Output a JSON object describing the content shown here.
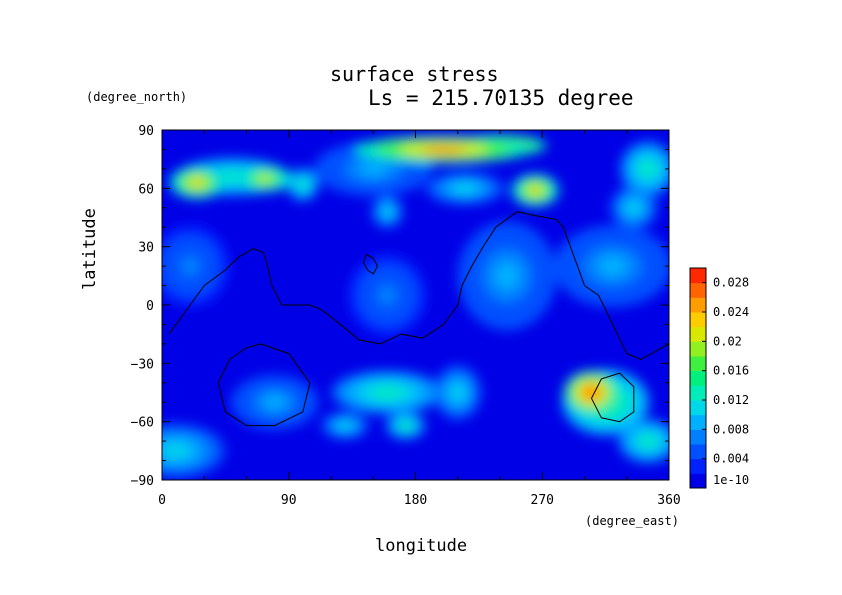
{
  "chart_data": {
    "type": "heatmap",
    "title": "surface stress",
    "subtitle": "Ls = 215.70135 degree",
    "xlabel": "longitude",
    "ylabel": "latitude",
    "x_units": "(degree_east)",
    "y_units": "(degree_north)",
    "xlim": [
      0,
      360
    ],
    "ylim": [
      -90,
      90
    ],
    "x_ticks": [
      "0",
      "90",
      "180",
      "270",
      "360"
    ],
    "y_ticks": [
      "90",
      "60",
      "30",
      "0",
      "−30",
      "−60",
      "−90"
    ],
    "colorbar": {
      "min": 0,
      "max": 0.03,
      "tick_labels": [
        "1e-10",
        "0.004",
        "0.008",
        "0.012",
        "0.016",
        "0.02",
        "0.024",
        "0.028"
      ],
      "colors": [
        "#0000e6",
        "#0022ff",
        "#0050ff",
        "#0080ff",
        "#00b0ff",
        "#00d8e8",
        "#00ecb8",
        "#00f080",
        "#40f040",
        "#90f020",
        "#d8e800",
        "#ffcc00",
        "#ff9c00",
        "#ff6400",
        "#ff2800"
      ]
    },
    "hotspots": [
      {
        "lon": 200,
        "lat": 80,
        "value": 0.026,
        "rx": 45,
        "ry": 5
      },
      {
        "lon": 238,
        "lat": 82,
        "value": 0.024,
        "rx": 25,
        "ry": 4
      },
      {
        "lon": 25,
        "lat": 63,
        "value": 0.022,
        "rx": 14,
        "ry": 6
      },
      {
        "lon": 73,
        "lat": 65,
        "value": 0.02,
        "rx": 14,
        "ry": 5
      },
      {
        "lon": 50,
        "lat": 66,
        "value": 0.012,
        "rx": 28,
        "ry": 7
      },
      {
        "lon": 265,
        "lat": 59,
        "value": 0.022,
        "rx": 12,
        "ry": 6
      },
      {
        "lon": 305,
        "lat": -45,
        "value": 0.027,
        "rx": 14,
        "ry": 8
      },
      {
        "lon": 315,
        "lat": -50,
        "value": 0.016,
        "rx": 22,
        "ry": 12
      },
      {
        "lon": 345,
        "lat": -70,
        "value": 0.012,
        "rx": 15,
        "ry": 8
      },
      {
        "lon": 160,
        "lat": -45,
        "value": 0.012,
        "rx": 28,
        "ry": 8
      },
      {
        "lon": 173,
        "lat": -62,
        "value": 0.014,
        "rx": 10,
        "ry": 5
      },
      {
        "lon": 130,
        "lat": -62,
        "value": 0.01,
        "rx": 12,
        "ry": 5
      },
      {
        "lon": 210,
        "lat": -45,
        "value": 0.01,
        "rx": 12,
        "ry": 10
      },
      {
        "lon": 80,
        "lat": -50,
        "value": 0.008,
        "rx": 22,
        "ry": 10
      },
      {
        "lon": 10,
        "lat": -75,
        "value": 0.01,
        "rx": 25,
        "ry": 10
      },
      {
        "lon": 320,
        "lat": 20,
        "value": 0.008,
        "rx": 30,
        "ry": 15
      },
      {
        "lon": 245,
        "lat": 15,
        "value": 0.008,
        "rx": 25,
        "ry": 20
      },
      {
        "lon": 160,
        "lat": 5,
        "value": 0.007,
        "rx": 20,
        "ry": 15
      },
      {
        "lon": 20,
        "lat": 20,
        "value": 0.006,
        "rx": 20,
        "ry": 15
      },
      {
        "lon": 345,
        "lat": 70,
        "value": 0.012,
        "rx": 14,
        "ry": 10
      },
      {
        "lon": 335,
        "lat": 50,
        "value": 0.01,
        "rx": 12,
        "ry": 8
      },
      {
        "lon": 150,
        "lat": 70,
        "value": 0.008,
        "rx": 30,
        "ry": 10
      },
      {
        "lon": 100,
        "lat": 62,
        "value": 0.012,
        "rx": 8,
        "ry": 6
      },
      {
        "lon": 160,
        "lat": 48,
        "value": 0.01,
        "rx": 8,
        "ry": 6
      },
      {
        "lon": 215,
        "lat": 60,
        "value": 0.01,
        "rx": 20,
        "ry": 6
      }
    ],
    "contours": [
      {
        "name": "continent-outline-1",
        "points": [
          [
            5,
            -15
          ],
          [
            20,
            0
          ],
          [
            30,
            10
          ],
          [
            45,
            18
          ],
          [
            55,
            25
          ],
          [
            65,
            29
          ],
          [
            72,
            27
          ],
          [
            75,
            20
          ],
          [
            78,
            10
          ],
          [
            85,
            0
          ],
          [
            95,
            0
          ],
          [
            105,
            0
          ],
          [
            112,
            -2
          ],
          [
            118,
            -5
          ],
          [
            130,
            -12
          ],
          [
            140,
            -18
          ],
          [
            155,
            -20
          ],
          [
            170,
            -15
          ],
          [
            185,
            -17
          ],
          [
            200,
            -10
          ],
          [
            210,
            0
          ],
          [
            213,
            10
          ],
          [
            220,
            20
          ],
          [
            228,
            30
          ],
          [
            237,
            40
          ],
          [
            252,
            48
          ],
          [
            265,
            46
          ],
          [
            280,
            44
          ],
          [
            285,
            40
          ],
          [
            290,
            30
          ],
          [
            295,
            20
          ],
          [
            300,
            10
          ],
          [
            310,
            5
          ],
          [
            320,
            -10
          ],
          [
            330,
            -25
          ],
          [
            340,
            -28
          ],
          [
            355,
            -22
          ],
          [
            360,
            -20
          ]
        ]
      },
      {
        "name": "crater-outline-1",
        "points": [
          [
            145,
            26
          ],
          [
            150,
            24
          ],
          [
            153,
            20
          ],
          [
            150,
            16
          ],
          [
            146,
            18
          ],
          [
            143,
            22
          ],
          [
            145,
            26
          ]
        ]
      },
      {
        "name": "crater-outline-2",
        "points": [
          [
            70,
            -20
          ],
          [
            90,
            -25
          ],
          [
            105,
            -40
          ],
          [
            100,
            -55
          ],
          [
            80,
            -62
          ],
          [
            60,
            -62
          ],
          [
            45,
            -55
          ],
          [
            40,
            -40
          ],
          [
            48,
            -28
          ],
          [
            60,
            -22
          ],
          [
            70,
            -20
          ]
        ]
      },
      {
        "name": "crater-outline-3",
        "points": [
          [
            325,
            -35
          ],
          [
            335,
            -42
          ],
          [
            335,
            -55
          ],
          [
            325,
            -60
          ],
          [
            312,
            -58
          ],
          [
            305,
            -48
          ],
          [
            312,
            -38
          ],
          [
            325,
            -35
          ]
        ]
      }
    ]
  }
}
